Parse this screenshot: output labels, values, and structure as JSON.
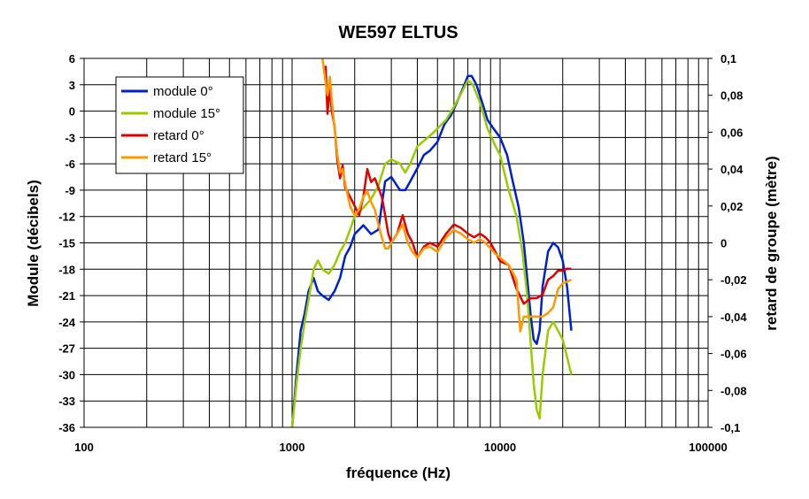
{
  "chart_data": {
    "type": "line",
    "title": "WE597 ELTUS",
    "xlabel": "fréquence  (Hz)",
    "ylabel": "Module (décibels)",
    "y2label": "retard de groupe  (mètre)",
    "x_scale": "log",
    "xlim": [
      100,
      100000
    ],
    "ylim": [
      -36,
      6
    ],
    "y2lim": [
      -0.1,
      0.1
    ],
    "x_ticks": [
      "100",
      "1000",
      "10000",
      "100000"
    ],
    "y_ticks": [
      "6",
      "3",
      "0",
      "-3",
      "-6",
      "-9",
      "-12",
      "-15",
      "-18",
      "-21",
      "-24",
      "-27",
      "-30",
      "-33",
      "-36"
    ],
    "y2_ticks": [
      "0,1",
      "0,08",
      "0,06",
      "0,04",
      "0,02",
      "0",
      "-0,02",
      "-0,04",
      "-0,06",
      "-0,08",
      "-0,1"
    ],
    "grid": true,
    "legend_position": "top-left",
    "series": [
      {
        "name": "module 0°",
        "axis": "left",
        "color": "#0020d0",
        "points": [
          [
            1000,
            -36
          ],
          [
            1050,
            -30
          ],
          [
            1100,
            -25
          ],
          [
            1150,
            -23
          ],
          [
            1200,
            -20.5
          ],
          [
            1270,
            -19
          ],
          [
            1330,
            -20.5
          ],
          [
            1400,
            -21
          ],
          [
            1500,
            -21.5
          ],
          [
            1600,
            -20.5
          ],
          [
            1700,
            -19
          ],
          [
            1800,
            -16.5
          ],
          [
            1900,
            -15.5
          ],
          [
            2000,
            -14
          ],
          [
            2200,
            -13
          ],
          [
            2400,
            -14
          ],
          [
            2600,
            -13.5
          ],
          [
            2800,
            -8
          ],
          [
            3000,
            -7.5
          ],
          [
            3300,
            -9
          ],
          [
            3500,
            -9
          ],
          [
            3700,
            -8
          ],
          [
            4000,
            -6.5
          ],
          [
            4300,
            -5
          ],
          [
            4600,
            -4.5
          ],
          [
            5000,
            -3.5
          ],
          [
            5400,
            -1.5
          ],
          [
            5800,
            -0.5
          ],
          [
            6200,
            1
          ],
          [
            6600,
            2.5
          ],
          [
            7000,
            4
          ],
          [
            7300,
            4
          ],
          [
            7700,
            3
          ],
          [
            8200,
            1
          ],
          [
            8700,
            -1
          ],
          [
            9300,
            -2
          ],
          [
            10000,
            -3
          ],
          [
            10800,
            -5
          ],
          [
            11500,
            -8
          ],
          [
            12300,
            -11
          ],
          [
            13000,
            -15
          ],
          [
            13500,
            -19
          ],
          [
            14000,
            -23
          ],
          [
            14500,
            -26
          ],
          [
            15000,
            -26.5
          ],
          [
            15500,
            -25
          ],
          [
            16000,
            -20
          ],
          [
            17000,
            -16
          ],
          [
            18000,
            -15
          ],
          [
            19000,
            -15.5
          ],
          [
            20000,
            -17
          ],
          [
            21000,
            -20
          ],
          [
            22000,
            -25
          ]
        ]
      },
      {
        "name": "module 15°",
        "axis": "left",
        "color": "#99cc00",
        "points": [
          [
            1000,
            -36
          ],
          [
            1050,
            -31
          ],
          [
            1100,
            -27
          ],
          [
            1150,
            -24
          ],
          [
            1200,
            -21.5
          ],
          [
            1270,
            -18
          ],
          [
            1330,
            -17
          ],
          [
            1400,
            -18
          ],
          [
            1500,
            -18.5
          ],
          [
            1600,
            -17.5
          ],
          [
            1700,
            -16
          ],
          [
            1800,
            -15
          ],
          [
            1900,
            -13.5
          ],
          [
            2000,
            -12
          ],
          [
            2200,
            -11
          ],
          [
            2400,
            -10
          ],
          [
            2600,
            -8.5
          ],
          [
            2800,
            -6
          ],
          [
            3000,
            -5.5
          ],
          [
            3300,
            -6
          ],
          [
            3500,
            -7
          ],
          [
            3700,
            -6
          ],
          [
            4000,
            -4
          ],
          [
            4500,
            -3
          ],
          [
            5000,
            -2
          ],
          [
            5500,
            -1
          ],
          [
            6000,
            0.5
          ],
          [
            6500,
            2
          ],
          [
            7000,
            3.5
          ],
          [
            7400,
            3
          ],
          [
            8000,
            1
          ],
          [
            8700,
            -2
          ],
          [
            9500,
            -4
          ],
          [
            10000,
            -5
          ],
          [
            11000,
            -9
          ],
          [
            12000,
            -12
          ],
          [
            12800,
            -16
          ],
          [
            13500,
            -21
          ],
          [
            14000,
            -26
          ],
          [
            14500,
            -31
          ],
          [
            15000,
            -34
          ],
          [
            15500,
            -35
          ],
          [
            16000,
            -30
          ],
          [
            17000,
            -25
          ],
          [
            18000,
            -24
          ],
          [
            19000,
            -25
          ],
          [
            20000,
            -26
          ],
          [
            21000,
            -28
          ],
          [
            22000,
            -30
          ]
        ]
      },
      {
        "name": "retard 0°",
        "axis": "right",
        "color": "#e00000",
        "points": [
          [
            1450,
            0.096
          ],
          [
            1480,
            0.07
          ],
          [
            1520,
            0.085
          ],
          [
            1550,
            0.072
          ],
          [
            1600,
            0.063
          ],
          [
            1650,
            0.045
          ],
          [
            1700,
            0.035
          ],
          [
            1750,
            0.042
          ],
          [
            1800,
            0.03
          ],
          [
            1900,
            0.025
          ],
          [
            2000,
            0.02
          ],
          [
            2100,
            0.015
          ],
          [
            2200,
            0.025
          ],
          [
            2300,
            0.04
          ],
          [
            2400,
            0.033
          ],
          [
            2500,
            0.035
          ],
          [
            2600,
            0.03
          ],
          [
            2700,
            0.025
          ],
          [
            2800,
            0.015
          ],
          [
            2900,
            0.005
          ],
          [
            3000,
            0
          ],
          [
            3200,
            0.005
          ],
          [
            3400,
            0.015
          ],
          [
            3600,
            0.005
          ],
          [
            3800,
            0
          ],
          [
            4000,
            -0.008
          ],
          [
            4300,
            -0.002
          ],
          [
            4600,
            0
          ],
          [
            5000,
            -0.002
          ],
          [
            5500,
            0.005
          ],
          [
            6000,
            0.01
          ],
          [
            6500,
            0.008
          ],
          [
            7000,
            0.005
          ],
          [
            7500,
            0.003
          ],
          [
            8000,
            0.005
          ],
          [
            8500,
            0.003
          ],
          [
            9000,
            0
          ],
          [
            9500,
            -0.005
          ],
          [
            10000,
            -0.01
          ],
          [
            11000,
            -0.012
          ],
          [
            12000,
            -0.025
          ],
          [
            13000,
            -0.033
          ],
          [
            14000,
            -0.03
          ],
          [
            15000,
            -0.03
          ],
          [
            16000,
            -0.028
          ],
          [
            17000,
            -0.02
          ],
          [
            18000,
            -0.018
          ],
          [
            19000,
            -0.015
          ],
          [
            20000,
            -0.015
          ],
          [
            21000,
            -0.014
          ],
          [
            22000,
            -0.014
          ]
        ]
      },
      {
        "name": "retard 15°",
        "axis": "right",
        "color": "#ff9900",
        "points": [
          [
            1400,
            0.1
          ],
          [
            1450,
            0.087
          ],
          [
            1480,
            0.08
          ],
          [
            1520,
            0.09
          ],
          [
            1550,
            0.078
          ],
          [
            1600,
            0.062
          ],
          [
            1650,
            0.048
          ],
          [
            1700,
            0.038
          ],
          [
            1750,
            0.04
          ],
          [
            1800,
            0.032
          ],
          [
            1900,
            0.02
          ],
          [
            2000,
            0.015
          ],
          [
            2100,
            0.018
          ],
          [
            2200,
            0.025
          ],
          [
            2300,
            0.028
          ],
          [
            2400,
            0.022
          ],
          [
            2500,
            0.018
          ],
          [
            2600,
            0.01
          ],
          [
            2700,
            0.003
          ],
          [
            2800,
            -0.003
          ],
          [
            2900,
            -0.003
          ],
          [
            3000,
            0
          ],
          [
            3200,
            0.005
          ],
          [
            3400,
            0.01
          ],
          [
            3600,
            0
          ],
          [
            3800,
            -0.005
          ],
          [
            4000,
            -0.008
          ],
          [
            4300,
            -0.003
          ],
          [
            4600,
            -0.002
          ],
          [
            5000,
            -0.005
          ],
          [
            5500,
            0.003
          ],
          [
            6000,
            0.007
          ],
          [
            6500,
            0.005
          ],
          [
            7000,
            0.002
          ],
          [
            7500,
            0
          ],
          [
            8000,
            0.002
          ],
          [
            8500,
            0
          ],
          [
            9000,
            -0.003
          ],
          [
            9500,
            -0.006
          ],
          [
            10000,
            -0.008
          ],
          [
            11000,
            -0.012
          ],
          [
            12000,
            -0.02
          ],
          [
            12500,
            -0.048
          ],
          [
            13000,
            -0.04
          ],
          [
            14000,
            -0.04
          ],
          [
            15000,
            -0.04
          ],
          [
            16000,
            -0.04
          ],
          [
            17000,
            -0.038
          ],
          [
            18000,
            -0.035
          ],
          [
            19000,
            -0.025
          ],
          [
            20000,
            -0.022
          ],
          [
            21000,
            -0.021
          ],
          [
            22000,
            -0.02
          ]
        ]
      }
    ]
  }
}
